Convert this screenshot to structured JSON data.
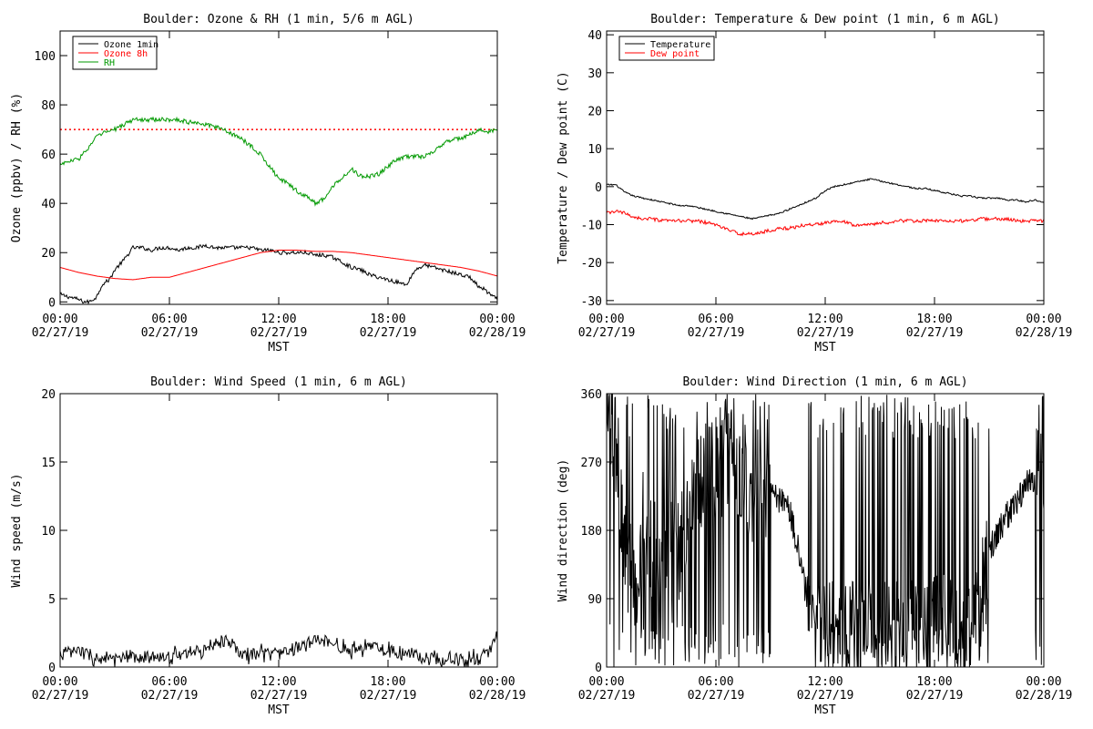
{
  "chart_data": [
    {
      "type": "line",
      "title": "Boulder: Ozone & RH (1 min, 5/6 m AGL)",
      "xlabel": "MST",
      "ylabel": "Ozone (ppbv) / RH (%)",
      "ylim": [
        -1,
        110
      ],
      "yticks": [
        0,
        20,
        40,
        60,
        80,
        100
      ],
      "xticks": [
        [
          "00:00",
          "02/27/19"
        ],
        [
          "06:00",
          "02/27/19"
        ],
        [
          "12:00",
          "02/27/19"
        ],
        [
          "18:00",
          "02/27/19"
        ],
        [
          "00:00",
          "02/28/19"
        ]
      ],
      "xlim_hours": [
        0,
        24
      ],
      "reference_lines": [
        {
          "y": 70,
          "color": "#ff0000",
          "style": "dotted"
        }
      ],
      "legend": "top-left",
      "series": [
        {
          "name": "Ozone 1min",
          "color": "#000000",
          "jitter": 0.8,
          "x": [
            0,
            0.5,
            1,
            1.3,
            1.6,
            2,
            2.3,
            2.7,
            3,
            3.5,
            4,
            4.5,
            5,
            5.5,
            6,
            6.5,
            7,
            7.5,
            8,
            8.5,
            9,
            9.5,
            10,
            10.5,
            11,
            11.5,
            12,
            12.5,
            13,
            13.5,
            14,
            14.5,
            15,
            15.5,
            16,
            16.5,
            17,
            17.5,
            18,
            18.5,
            19,
            19.5,
            20,
            20.5,
            21,
            21.5,
            22,
            22.5,
            23,
            23.3,
            23.6,
            24
          ],
          "y": [
            3,
            2,
            1,
            0,
            0,
            2,
            7,
            9,
            13,
            17,
            22,
            22,
            21,
            22,
            22,
            21,
            22,
            22,
            23,
            22,
            22,
            22,
            22,
            22,
            21,
            21,
            20,
            20,
            20,
            20,
            19,
            19,
            18,
            16,
            14,
            13,
            11,
            10,
            9,
            8,
            7,
            13,
            15,
            14,
            13,
            12,
            11,
            10,
            6,
            5,
            3,
            1
          ]
        },
        {
          "name": "Ozone 8h",
          "color": "#ff0000",
          "jitter": 0,
          "x": [
            0,
            1,
            2,
            3,
            4,
            5,
            6,
            7,
            8,
            9,
            10,
            11,
            12,
            13,
            14,
            15,
            16,
            17,
            18,
            19,
            20,
            21,
            22,
            23,
            24
          ],
          "y": [
            14,
            12,
            10.5,
            9.5,
            9,
            10,
            10,
            12,
            14,
            16,
            18,
            20,
            21,
            21,
            20.5,
            20.5,
            20,
            19,
            18,
            17,
            16,
            15,
            14,
            12.5,
            10.5
          ]
        },
        {
          "name": "RH",
          "color": "#009900",
          "jitter": 0.9,
          "x": [
            0,
            0.5,
            1,
            1.5,
            2,
            2.5,
            3,
            3.5,
            4,
            4.5,
            5,
            5.5,
            6,
            6.5,
            7,
            7.5,
            8,
            8.5,
            9,
            9.5,
            10,
            10.5,
            11,
            11.5,
            12,
            12.5,
            13,
            13.5,
            14,
            14.5,
            15,
            15.5,
            16,
            16.5,
            17,
            17.5,
            18,
            18.5,
            19,
            19.5,
            20,
            20.5,
            21,
            21.5,
            22,
            22.5,
            23,
            23.5,
            24
          ],
          "y": [
            56,
            57,
            58,
            62,
            67,
            69,
            70,
            72,
            74,
            74,
            74,
            74,
            74,
            74,
            73,
            73,
            72,
            71,
            70,
            68,
            66,
            63,
            60,
            55,
            50,
            48,
            45,
            43,
            40,
            42,
            47,
            51,
            54,
            51,
            51,
            52,
            55,
            58,
            59,
            59,
            59,
            61,
            64,
            66,
            66,
            68,
            70,
            69,
            70
          ]
        }
      ]
    },
    {
      "type": "line",
      "title": "Boulder: Temperature & Dew point (1 min, 6 m AGL)",
      "xlabel": "MST",
      "ylabel": "Temperature / Dew point (C)",
      "ylim": [
        -31,
        41
      ],
      "yticks": [
        -30,
        -20,
        -10,
        0,
        10,
        20,
        30,
        40
      ],
      "xticks": [
        [
          "00:00",
          "02/27/19"
        ],
        [
          "06:00",
          "02/27/19"
        ],
        [
          "12:00",
          "02/27/19"
        ],
        [
          "18:00",
          "02/27/19"
        ],
        [
          "00:00",
          "02/28/19"
        ]
      ],
      "xlim_hours": [
        0,
        24
      ],
      "legend": "top-left",
      "series": [
        {
          "name": "Temperature",
          "color": "#000000",
          "jitter": 0.2,
          "x": [
            0,
            0.5,
            1,
            1.5,
            2,
            2.5,
            3,
            3.5,
            4,
            4.5,
            5,
            5.5,
            6,
            6.5,
            7,
            7.5,
            8,
            8.5,
            9,
            9.5,
            10,
            10.5,
            11,
            11.5,
            12,
            12.5,
            13,
            13.5,
            14,
            14.5,
            15,
            15.5,
            16,
            16.5,
            17,
            17.5,
            18,
            18.5,
            19,
            19.5,
            20,
            20.5,
            21,
            21.5,
            22,
            22.5,
            23,
            23.5,
            24
          ],
          "y": [
            0.5,
            0.5,
            -1.5,
            -2.5,
            -3,
            -3.5,
            -4,
            -4.5,
            -5,
            -5,
            -5.5,
            -6,
            -6.5,
            -7,
            -7.5,
            -8,
            -8.5,
            -8,
            -7.5,
            -7,
            -6,
            -5,
            -4,
            -3,
            -1,
            0,
            0.5,
            1,
            1.5,
            2,
            1.5,
            1,
            0.5,
            0,
            -0.5,
            -0.5,
            -1,
            -1.5,
            -2,
            -2.5,
            -2.5,
            -3,
            -3,
            -3,
            -3.5,
            -3.5,
            -4,
            -3.5,
            -4
          ]
        },
        {
          "name": "Dew point",
          "color": "#ff0000",
          "jitter": 0.45,
          "x": [
            0,
            0.5,
            1,
            1.5,
            2,
            2.5,
            3,
            3.5,
            4,
            4.5,
            5,
            5.5,
            6,
            6.5,
            7,
            7.5,
            8,
            8.5,
            9,
            9.5,
            10,
            10.5,
            11,
            11.5,
            12,
            12.5,
            13,
            13.5,
            14,
            14.5,
            15,
            15.5,
            16,
            16.5,
            17,
            17.5,
            18,
            18.5,
            19,
            19.5,
            20,
            20.5,
            21,
            21.5,
            22,
            22.5,
            23,
            23.5,
            24
          ],
          "y": [
            -7,
            -6.5,
            -7,
            -8,
            -8.5,
            -8.5,
            -9,
            -9,
            -9,
            -9,
            -9,
            -9.5,
            -10,
            -11,
            -12,
            -12.5,
            -12.5,
            -12,
            -11.5,
            -11,
            -11,
            -10.5,
            -10,
            -10,
            -9.5,
            -9,
            -9,
            -10,
            -10,
            -10,
            -9.5,
            -9.5,
            -9,
            -9,
            -9,
            -9,
            -9,
            -9,
            -9,
            -9,
            -9,
            -8.5,
            -8.5,
            -8.5,
            -8.5,
            -9,
            -9,
            -9,
            -9
          ]
        }
      ]
    },
    {
      "type": "line",
      "title": "Boulder: Wind Speed (1 min, 6 m AGL)",
      "xlabel": "MST",
      "ylabel": "Wind speed (m/s)",
      "ylim": [
        0,
        20
      ],
      "yticks": [
        0,
        5,
        10,
        15,
        20
      ],
      "xticks": [
        [
          "00:00",
          "02/27/19"
        ],
        [
          "06:00",
          "02/27/19"
        ],
        [
          "12:00",
          "02/27/19"
        ],
        [
          "18:00",
          "02/27/19"
        ],
        [
          "00:00",
          "02/28/19"
        ]
      ],
      "xlim_hours": [
        0,
        24
      ],
      "series": [
        {
          "name": "",
          "color": "#000000",
          "jitter": 0.5,
          "x": [
            0,
            1,
            2,
            3,
            4,
            5,
            6,
            7,
            8,
            9,
            9.5,
            10,
            11,
            12,
            13,
            14,
            15,
            16,
            17,
            18,
            19,
            20,
            21,
            22,
            23,
            23.5,
            24
          ],
          "y": [
            1,
            1.2,
            0.6,
            0.6,
            0.6,
            0.7,
            0.8,
            1,
            1.3,
            2,
            1.6,
            0.8,
            1,
            1,
            1.4,
            2,
            1.6,
            1.3,
            1.5,
            1.3,
            1,
            0.8,
            0.6,
            0.5,
            0.7,
            1,
            2.5
          ]
        }
      ]
    },
    {
      "type": "line",
      "title": "Boulder: Wind Direction (1 min, 6 m AGL)",
      "xlabel": "MST",
      "ylabel": "Wind direction (deg)",
      "ylim": [
        0,
        360
      ],
      "yticks": [
        0,
        90,
        180,
        270,
        360
      ],
      "xticks": [
        [
          "00:00",
          "02/27/19"
        ],
        [
          "06:00",
          "02/27/19"
        ],
        [
          "12:00",
          "02/27/19"
        ],
        [
          "18:00",
          "02/27/19"
        ],
        [
          "00:00",
          "02/28/19"
        ]
      ],
      "xlim_hours": [
        0,
        24
      ],
      "series": [
        {
          "name": "",
          "color": "#000000",
          "jitter": 0,
          "x": [
            0,
            0.5,
            1,
            1.5,
            2,
            2.5,
            3,
            3.5,
            4,
            4.5,
            5,
            5.5,
            6,
            6.5,
            7,
            7.5,
            8,
            8.5,
            9,
            9.5,
            10,
            10.5,
            11,
            11.5,
            12,
            12.5,
            13,
            13.5,
            14,
            14.5,
            15,
            15.5,
            16,
            16.5,
            17,
            17.5,
            18,
            18.5,
            19,
            19.5,
            20,
            20.5,
            21,
            21.5,
            22,
            22.5,
            23,
            23.5,
            24
          ],
          "y": [
            330,
            300,
            150,
            100,
            200,
            160,
            120,
            160,
            150,
            200,
            240,
            250,
            260,
            255,
            240,
            230,
            230,
            230,
            225,
            220,
            210,
            160,
            90,
            60,
            50,
            50,
            45,
            45,
            45,
            45,
            40,
            45,
            45,
            45,
            45,
            50,
            50,
            60,
            60,
            50,
            40,
            90,
            150,
            180,
            200,
            220,
            240,
            250,
            180
          ]
        }
      ]
    }
  ]
}
